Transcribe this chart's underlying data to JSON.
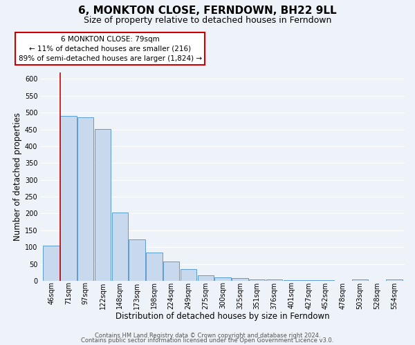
{
  "title": "6, MONKTON CLOSE, FERNDOWN, BH22 9LL",
  "subtitle": "Size of property relative to detached houses in Ferndown",
  "xlabel": "Distribution of detached houses by size in Ferndown",
  "ylabel": "Number of detached properties",
  "bar_labels": [
    "46sqm",
    "71sqm",
    "97sqm",
    "122sqm",
    "148sqm",
    "173sqm",
    "198sqm",
    "224sqm",
    "249sqm",
    "275sqm",
    "300sqm",
    "325sqm",
    "351sqm",
    "376sqm",
    "401sqm",
    "427sqm",
    "452sqm",
    "478sqm",
    "503sqm",
    "528sqm",
    "554sqm"
  ],
  "bar_values": [
    105,
    490,
    487,
    452,
    202,
    122,
    83,
    57,
    35,
    16,
    10,
    8,
    5,
    3,
    2,
    1,
    1,
    0,
    5,
    0,
    5
  ],
  "bar_color": "#c9d9ed",
  "bar_edge_color": "#5b9bd5",
  "annotation_title": "6 MONKTON CLOSE: 79sqm",
  "annotation_line1": "← 11% of detached houses are smaller (216)",
  "annotation_line2": "89% of semi-detached houses are larger (1,824) →",
  "annotation_box_color": "#ffffff",
  "annotation_box_edge": "#cc0000",
  "red_line_color": "#cc0000",
  "ylim": [
    0,
    620
  ],
  "yticks": [
    0,
    50,
    100,
    150,
    200,
    250,
    300,
    350,
    400,
    450,
    500,
    550,
    600
  ],
  "footnote1": "Contains HM Land Registry data © Crown copyright and database right 2024.",
  "footnote2": "Contains public sector information licensed under the Open Government Licence v3.0.",
  "background_color": "#eef2f9",
  "grid_color": "#ffffff",
  "title_fontsize": 11,
  "subtitle_fontsize": 9,
  "axis_label_fontsize": 8.5,
  "tick_fontsize": 7,
  "annotation_fontsize": 7.5,
  "footnote_fontsize": 6
}
